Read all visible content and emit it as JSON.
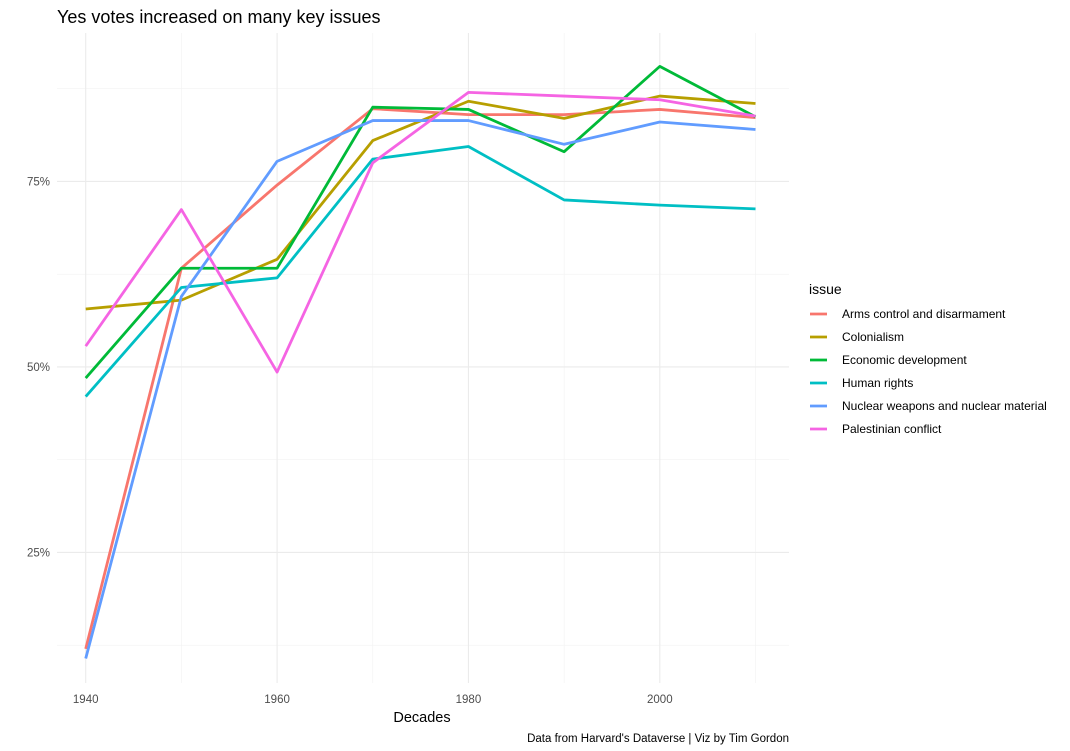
{
  "chart_data": {
    "type": "line",
    "title": "Yes votes increased on many key issues",
    "xlabel": "Decades",
    "ylabel": "",
    "caption": "Data from Harvard's Dataverse | Viz by Tim Gordon",
    "x": [
      1940,
      1950,
      1960,
      1970,
      1980,
      1990,
      2000,
      2010
    ],
    "xlim": [
      1937,
      2013.5
    ],
    "ylim": [
      0.074,
      0.95
    ],
    "x_ticks": [
      1940,
      1960,
      1980,
      2000
    ],
    "x_tick_labels": [
      "1940",
      "1960",
      "1980",
      "2000"
    ],
    "y_ticks": [
      0.25,
      0.5,
      0.75
    ],
    "y_tick_labels": [
      "25%",
      "50%",
      "75%"
    ],
    "grid": true,
    "legend": {
      "title": "issue",
      "position": "right"
    },
    "series": [
      {
        "name": "Arms control and disarmament",
        "color": "#F8766D",
        "values": [
          0.12,
          0.633,
          0.745,
          0.848,
          0.84,
          0.84,
          0.847,
          0.836
        ]
      },
      {
        "name": "Colonialism",
        "color": "#B79F00",
        "values": [
          0.578,
          0.59,
          0.645,
          0.805,
          0.858,
          0.835,
          0.865,
          0.855
        ]
      },
      {
        "name": "Economic development",
        "color": "#00BA38",
        "values": [
          0.485,
          0.633,
          0.633,
          0.85,
          0.847,
          0.79,
          0.905,
          0.837
        ]
      },
      {
        "name": "Human rights",
        "color": "#00BFC4",
        "values": [
          0.46,
          0.607,
          0.62,
          0.78,
          0.797,
          0.725,
          0.718,
          0.713
        ]
      },
      {
        "name": "Nuclear weapons and nuclear material",
        "color": "#619CFF",
        "values": [
          0.107,
          0.595,
          0.777,
          0.832,
          0.832,
          0.8,
          0.83,
          0.82
        ]
      },
      {
        "name": "Palestinian conflict",
        "color": "#F564E3",
        "values": [
          0.528,
          0.712,
          0.493,
          0.775,
          0.87,
          0.865,
          0.86,
          0.838
        ]
      }
    ]
  }
}
